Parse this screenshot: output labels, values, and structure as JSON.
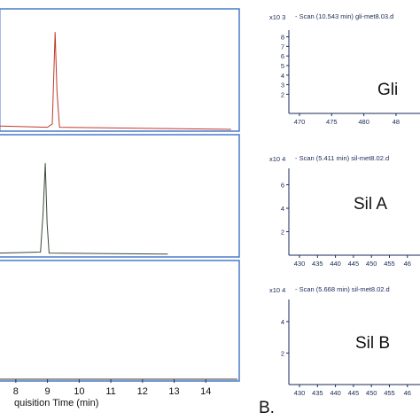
{
  "chart_data": [
    {
      "type": "line",
      "panel": "A-top",
      "color": "#c0392b",
      "xlim": [
        7.5,
        15
      ],
      "points": [
        [
          7.5,
          0.03
        ],
        [
          9.0,
          0.02
        ],
        [
          9.15,
          0.05
        ],
        [
          9.24,
          0.9
        ],
        [
          9.3,
          0.35
        ],
        [
          9.38,
          0.02
        ],
        [
          14.8,
          0.0
        ]
      ]
    },
    {
      "type": "line",
      "panel": "A-middle",
      "color": "#3a4a3a",
      "xlim": [
        7.5,
        15
      ],
      "points": [
        [
          7.5,
          0.02
        ],
        [
          8.78,
          0.03
        ],
        [
          8.86,
          0.4
        ],
        [
          8.93,
          0.88
        ],
        [
          8.99,
          0.3
        ],
        [
          9.05,
          0.02
        ],
        [
          12.8,
          0.01
        ]
      ]
    },
    {
      "type": "line",
      "panel": "A-bottom",
      "xlim": [
        7.5,
        15
      ],
      "xticks": [
        "8",
        "9",
        "10",
        "11",
        "12",
        "13",
        "14"
      ],
      "xlabel": "quisition Time (min)",
      "points": []
    },
    {
      "type": "bar",
      "panel": "B-top",
      "header": "Scan (10.543 min) gli-met8.03.d",
      "y_exponent": "x10 3",
      "yticks": [
        "2",
        "3",
        "4",
        "5",
        "6",
        "7",
        "8"
      ],
      "xticks": [
        "470",
        "475",
        "480",
        "48"
      ],
      "label": "Gli",
      "values": []
    },
    {
      "type": "bar",
      "panel": "B-middle",
      "header": "Scan (5.411 min) sil-met8.02.d",
      "y_exponent": "x10 4",
      "yticks": [
        "2",
        "4",
        "6"
      ],
      "xticks": [
        "430",
        "435",
        "440",
        "445",
        "450",
        "455",
        "46"
      ],
      "label": "Sil A",
      "values": []
    },
    {
      "type": "bar",
      "panel": "B-bottom",
      "header": "Scan (5.668 min) sil-met8.02.d",
      "y_exponent": "x10 4",
      "yticks": [
        "2",
        "4"
      ],
      "xticks": [
        "430",
        "435",
        "440",
        "445",
        "450",
        "455",
        "46"
      ],
      "label": "Sil B",
      "values": []
    }
  ],
  "panel_letter_b": "B."
}
